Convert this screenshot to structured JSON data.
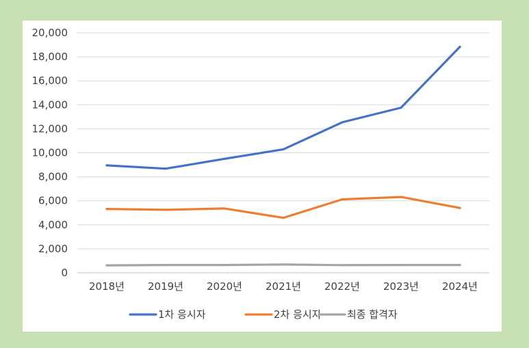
{
  "chart_data": {
    "type": "line",
    "title": "",
    "xlabel": "",
    "ylabel": "",
    "categories": [
      "2018년",
      "2019년",
      "2020년",
      "2021년",
      "2022년",
      "2023년",
      "2024년"
    ],
    "ylim": [
      0,
      20000
    ],
    "y_ticks": [
      0,
      2000,
      4000,
      6000,
      8000,
      10000,
      12000,
      14000,
      16000,
      18000,
      20000
    ],
    "y_tick_labels": [
      "0",
      "2,000",
      "4,000",
      "6,000",
      "8,000",
      "10,000",
      "12,000",
      "14,000",
      "16,000",
      "18,000",
      "20,000"
    ],
    "grid": true,
    "legend_position": "bottom",
    "series": [
      {
        "name": "1차 응시자",
        "color": "#4472c4",
        "values": [
          8950,
          8680,
          9500,
          10290,
          12540,
          13760,
          18830
        ]
      },
      {
        "name": "2차 응시자",
        "color": "#ed7d31",
        "values": [
          5320,
          5250,
          5360,
          4580,
          6120,
          6320,
          5400
        ]
      },
      {
        "name": "최종 합격자",
        "color": "#a5a5a5",
        "values": [
          620,
          650,
          650,
          690,
          640,
          650,
          650
        ]
      }
    ]
  }
}
